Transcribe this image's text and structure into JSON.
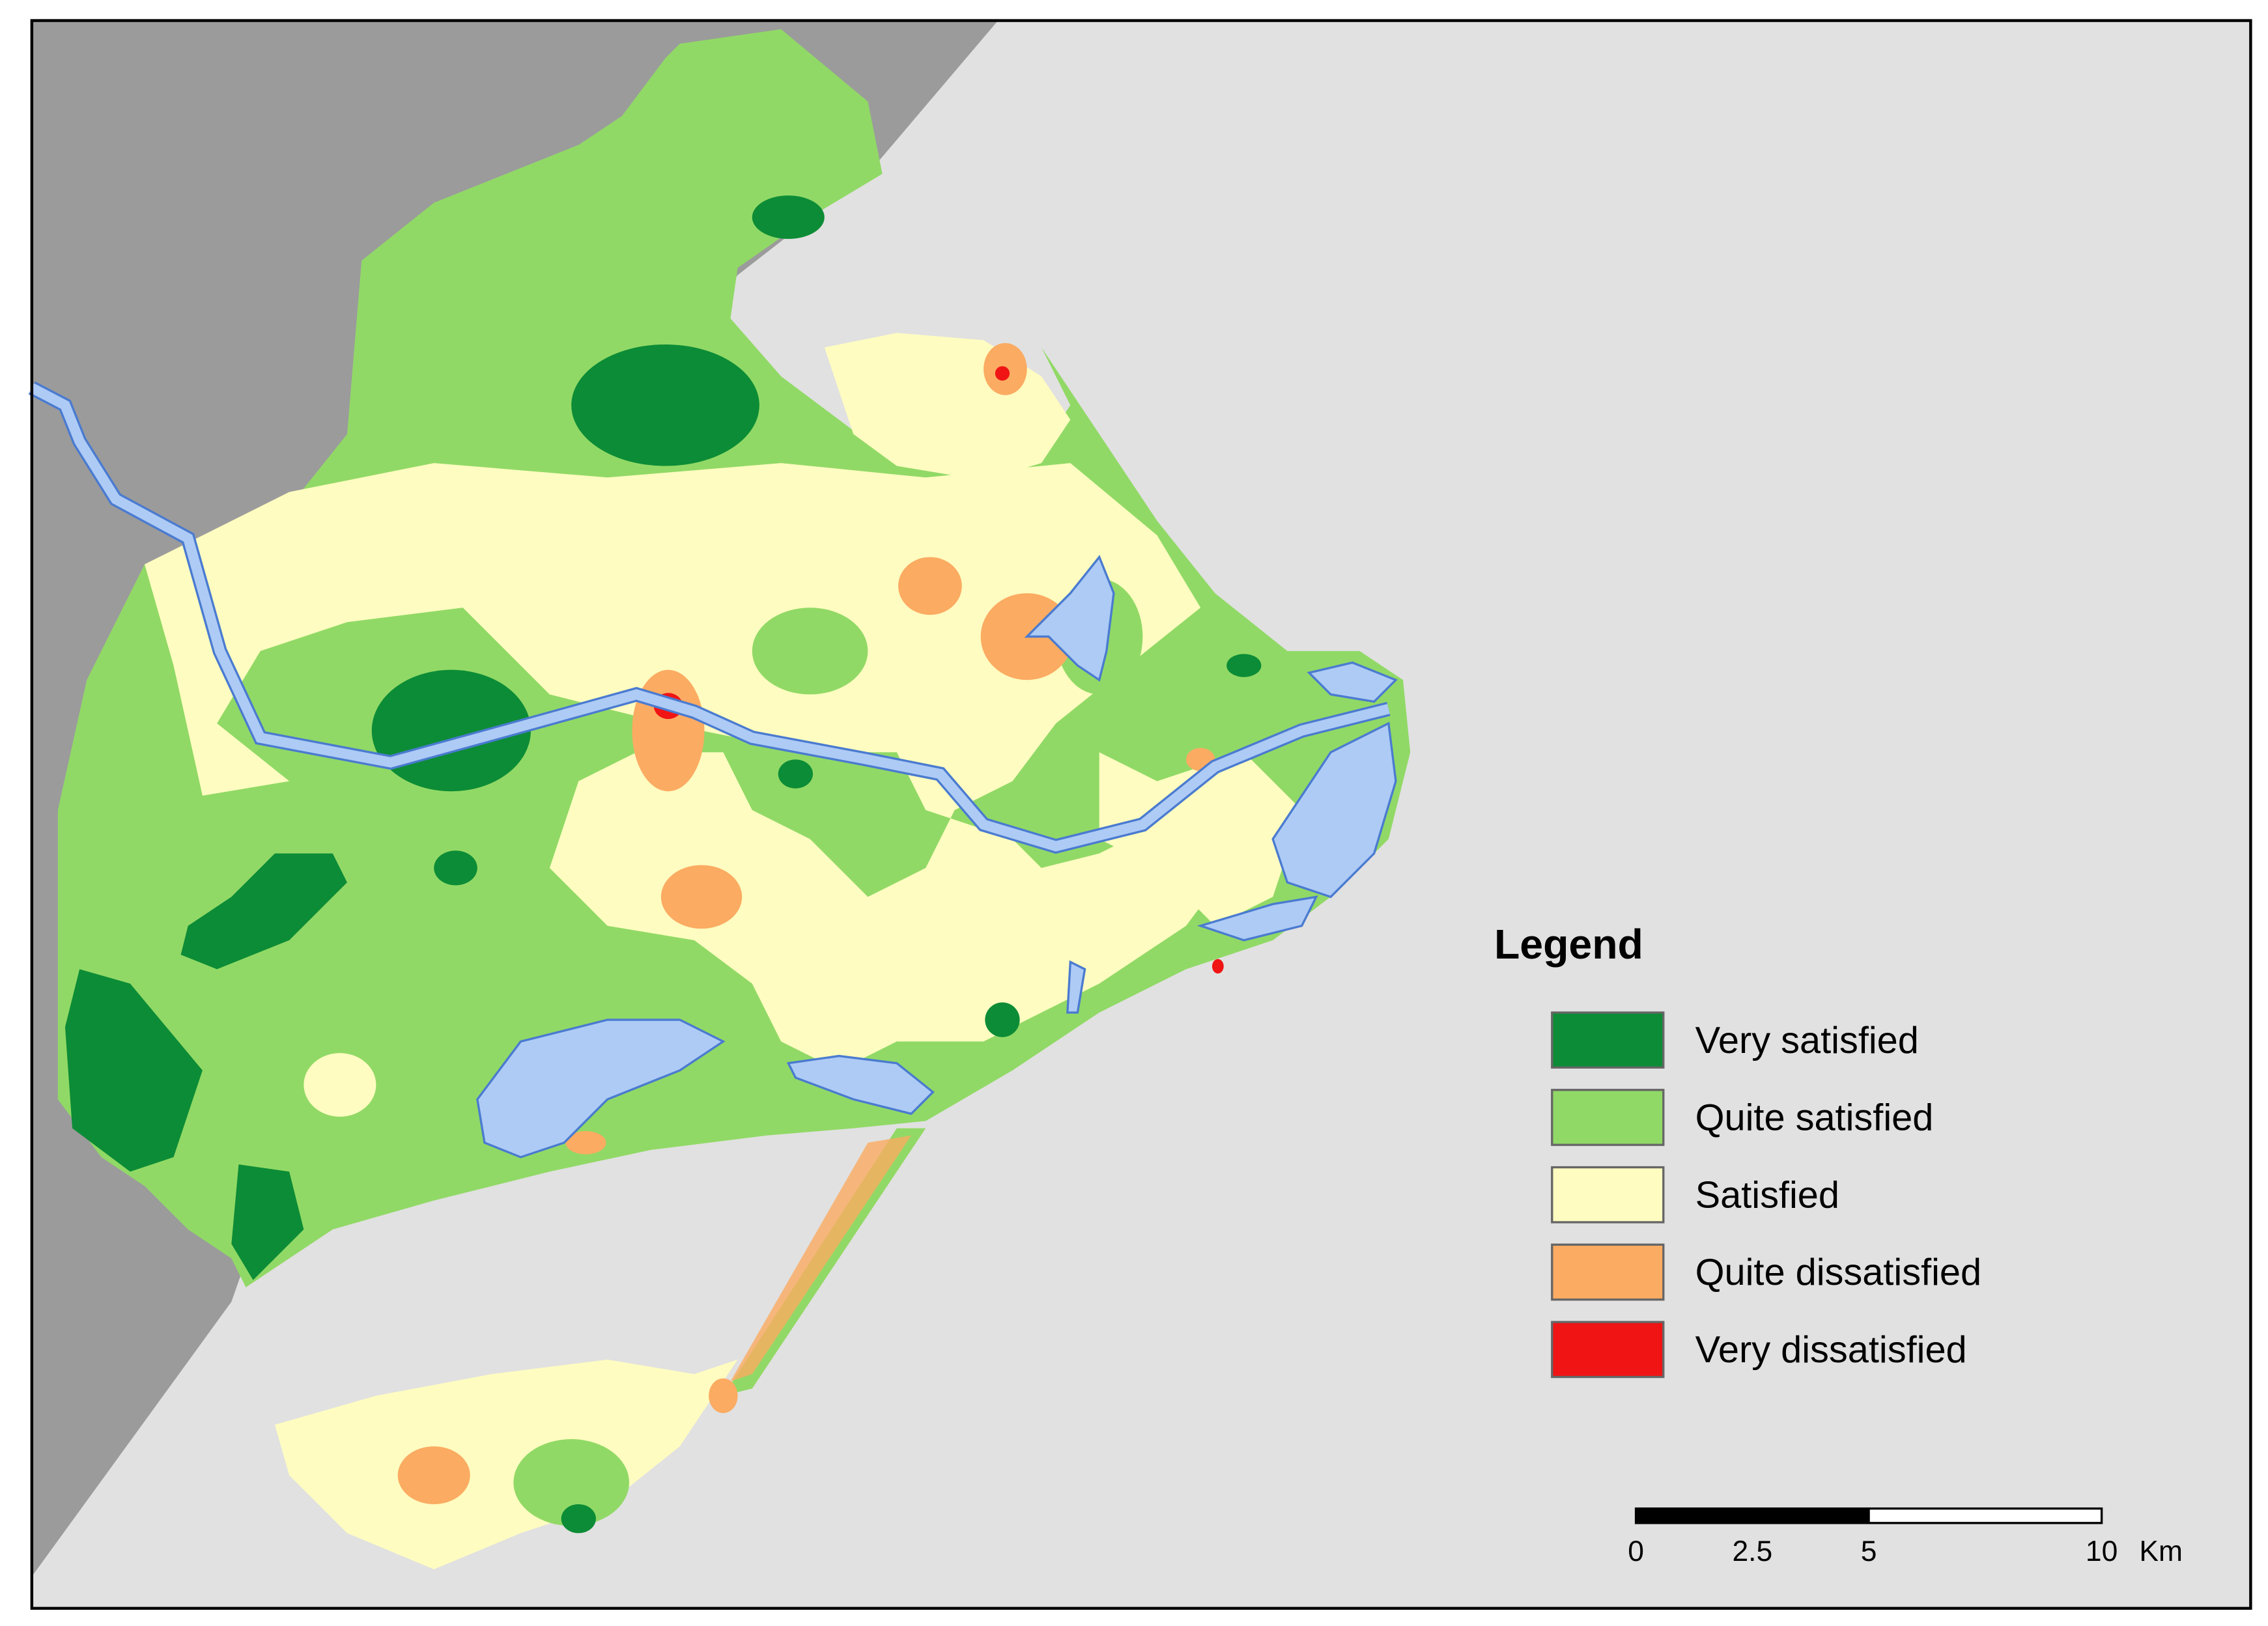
{
  "legend": {
    "title": "Legend",
    "items": [
      {
        "label": "Very satisfied",
        "color": "#0c8c36"
      },
      {
        "label": "Quite satisfied",
        "color": "#91d966"
      },
      {
        "label": "Satisfied",
        "color": "#fefcc0"
      },
      {
        "label": "Quite dissatisfied",
        "color": "#fbab62"
      },
      {
        "label": "Very dissatisfied",
        "color": "#f01414"
      }
    ]
  },
  "scale_bar": {
    "ticks": [
      0,
      2.5,
      5,
      10
    ],
    "unit": "Km",
    "segment_colors": [
      "#000000",
      "#000000",
      "#ffffff"
    ]
  }
}
